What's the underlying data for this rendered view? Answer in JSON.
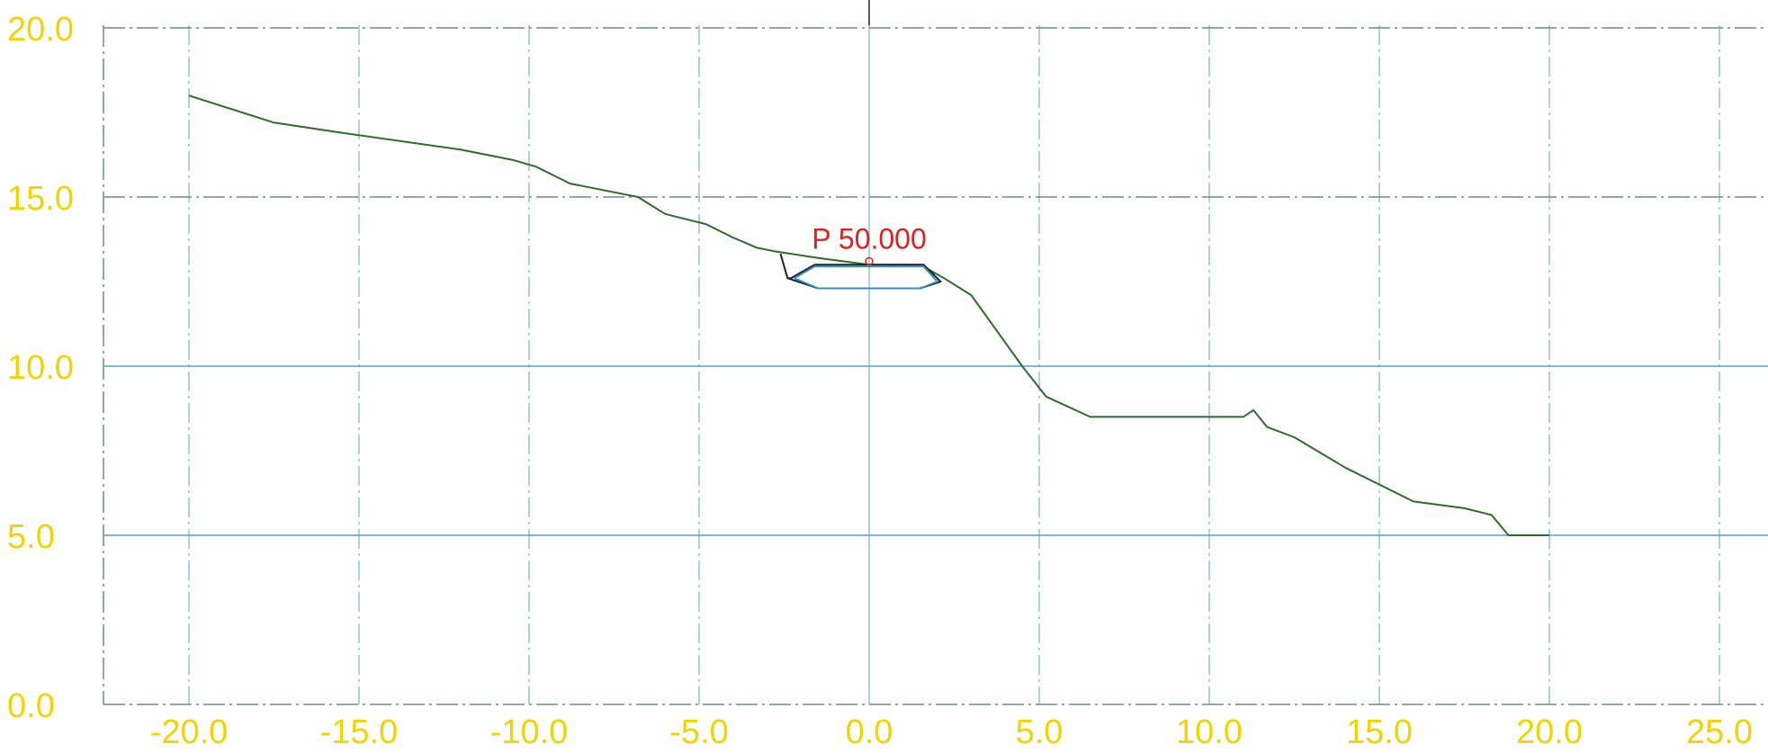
{
  "chart_data": {
    "type": "line",
    "title": "",
    "xlabel": "",
    "ylabel": "",
    "xlim": [
      -22,
      26
    ],
    "ylim": [
      0,
      20
    ],
    "x_ticks": [
      "-20.0",
      "-15.0",
      "-10.0",
      "-5.0",
      "0.0",
      "5.0",
      "10.0",
      "15.0",
      "20.0",
      "25.0"
    ],
    "y_ticks": [
      "0.0",
      "5.0",
      "10.0",
      "15.0",
      "20.0"
    ],
    "grid": true,
    "colors": {
      "tick_labels": "#f2d400",
      "grid_vertical": "#8fc3d8",
      "grid_horizontal": "#4fa3c8",
      "ground": "#2f6b2a",
      "road_outline": "#1c2230",
      "road_inner": "#3a8fc0",
      "annotation": "#e02020"
    },
    "series": [
      {
        "x": [
          -20,
          -17.5,
          -15.5,
          -12,
          -10.5,
          -9.8,
          -9.2,
          -8.8,
          -8.3,
          -6.8,
          -6,
          -4.8,
          -4,
          -3.3,
          -2.8,
          -1.5,
          0,
          1.5,
          2.2,
          3,
          4.5,
          5.2,
          6.5,
          9.5,
          11,
          11.3,
          11.7,
          12.5,
          14,
          16,
          17.5,
          18.3,
          18.8,
          20
        ],
        "y": [
          18,
          17.2,
          16.9,
          16.4,
          16.1,
          15.9,
          15.6,
          15.4,
          15.3,
          15.0,
          14.5,
          14.2,
          13.8,
          13.5,
          13.4,
          13.2,
          13.0,
          13.0,
          12.6,
          12.1,
          10.0,
          9.1,
          8.5,
          8.5,
          8.5,
          8.7,
          8.2,
          7.9,
          7.0,
          6.0,
          5.8,
          5.6,
          5.0,
          5.0
        ]
      },
      {
        "x": [
          -2.4,
          -2.3,
          -1.6,
          1.6,
          2.1,
          1.5,
          -1.5,
          -2.4,
          -2.4,
          -2.6,
          -2.4
        ],
        "y": [
          12.6,
          12.6,
          13.0,
          13.0,
          12.5,
          12.3,
          12.3,
          12.6,
          12.6,
          13.3,
          12.6
        ]
      },
      {
        "x": [
          -2.2,
          -1.6,
          1.6,
          2.0,
          1.5,
          -1.5,
          -2.2
        ],
        "y": [
          12.6,
          12.95,
          12.95,
          12.5,
          12.3,
          12.3,
          12.6
        ]
      }
    ],
    "annotations": [
      {
        "text": "P 50.000",
        "x": 0,
        "y": 13.1
      }
    ]
  }
}
